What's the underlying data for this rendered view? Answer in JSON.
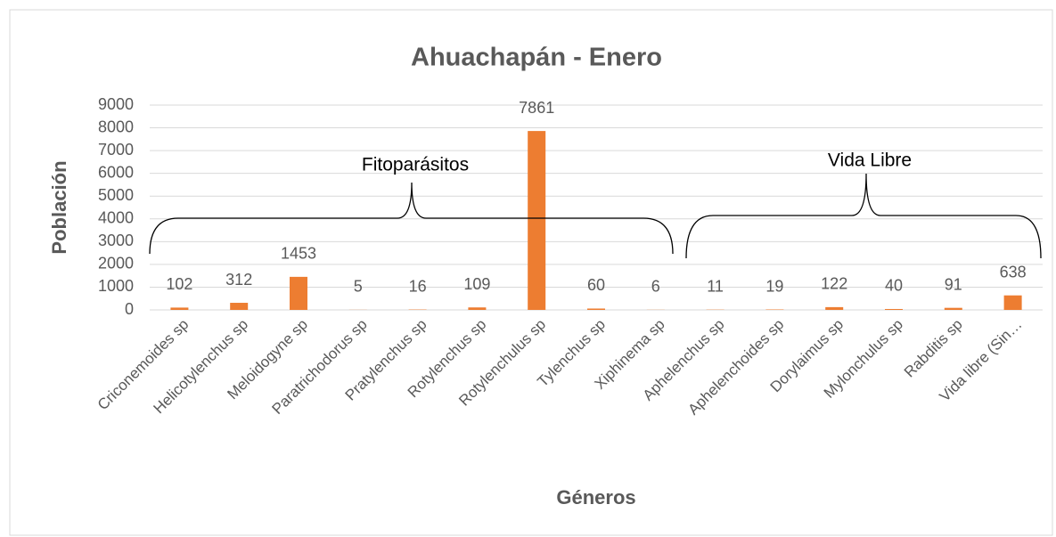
{
  "chart_data": {
    "type": "bar",
    "title": "Ahuachapán - Enero",
    "x_label": "Géneros",
    "y_label": "Población",
    "annotations": [
      "Fitoparásitos",
      "Vida Libre"
    ],
    "categories": [
      "Criconemoides sp",
      "Helicotylenchus sp",
      "Meloidogyne sp",
      "Paratrichodorus sp",
      "Pratylenchus sp",
      "Rotylenchus sp",
      "Rotylenchulus sp",
      "Tylenchus sp",
      "Xiphinema sp",
      "Aphelenchus sp",
      "Aphelenchoides sp",
      "Dorylaimus sp",
      "Mylonchulus sp",
      "Rabditis sp",
      "Vida libre (Sin…"
    ],
    "values": [
      102,
      312,
      1453,
      5,
      16,
      109,
      7861,
      60,
      6,
      11,
      19,
      122,
      40,
      91,
      638
    ],
    "color": "#ed7d31",
    "ylim": [
      0,
      9000
    ],
    "yticks": [
      0,
      1000,
      2000,
      3000,
      4000,
      5000,
      6000,
      7000,
      8000,
      9000
    ],
    "grid": true
  }
}
